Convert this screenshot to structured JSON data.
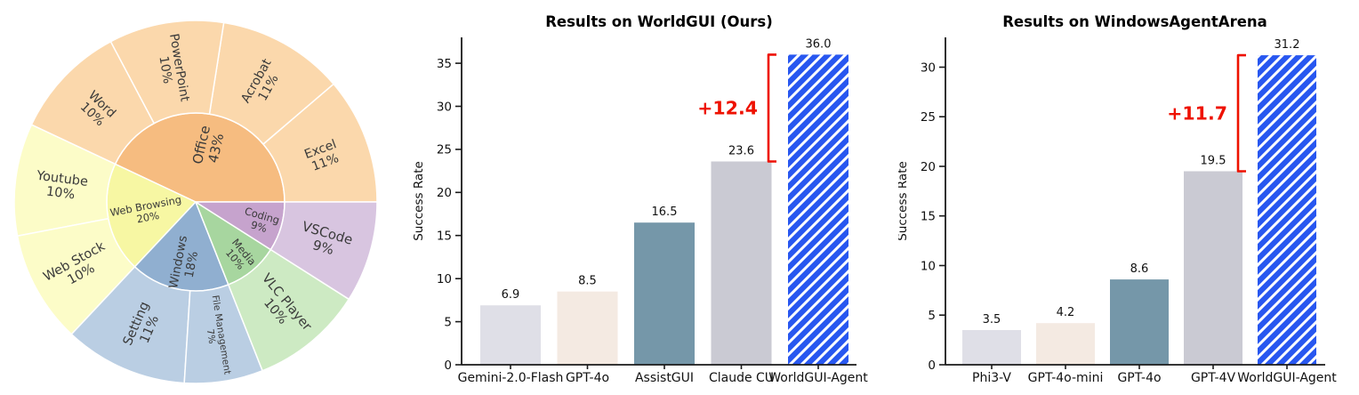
{
  "figure_title": "",
  "chart_data": [
    {
      "type": "sunburst",
      "description": "Task distribution donut: inner ring = categories, outer ring = applications",
      "start_angle_deg": 0,
      "direction": "ccw",
      "inner_radius": 100,
      "outer_radius": 204,
      "label_radius_outer": 152,
      "text_color": "#3a3a3a",
      "segments": [
        {
          "label": "Office",
          "pct": 43,
          "color": "#f6bc80",
          "label_size": 15,
          "label_r": 64,
          "children": [
            {
              "label": "Excel",
              "pct": 11,
              "color": "#fbd8ac",
              "label_size": 14
            },
            {
              "label": "Acrobat",
              "pct": 11,
              "color": "#fbd8ac",
              "label_size": 14
            },
            {
              "label": "PowerPoint",
              "pct": 10,
              "color": "#fbd8ac",
              "label_size": 14
            },
            {
              "label": "Word",
              "pct": 10,
              "color": "#fbd8ac",
              "label_size": 14
            }
          ]
        },
        {
          "label": "Web Browsing",
          "pct": 20,
          "color": "#f7f7a3",
          "label_size": 11.5,
          "label_r": 56,
          "children": [
            {
              "label": "Youtube",
              "pct": 10,
              "color": "#fcfcc8",
              "label_size": 14.5
            },
            {
              "label": "Web Stock",
              "pct": 10,
              "color": "#fcfcc8",
              "label_size": 14.5
            }
          ]
        },
        {
          "label": "Windows",
          "pct": 18,
          "color": "#90afd0",
          "label_size": 13.5,
          "label_r": 70,
          "children": [
            {
              "label": "Setting",
              "pct": 11,
              "color": "#bacee3",
              "label_size": 14.5
            },
            {
              "label": "File Management",
              "pct": 7,
              "color": "#bacee3",
              "label_size": 10.5
            }
          ]
        },
        {
          "label": "Media",
          "pct": 10,
          "color": "#a7d69f",
          "label_size": 11.5,
          "label_r": 78,
          "children": [
            {
              "label": "VLC Player",
              "pct": 10,
              "color": "#cdeac3",
              "label_size": 14.5
            }
          ]
        },
        {
          "label": "Coding",
          "pct": 9,
          "color": "#c6a3cd",
          "label_size": 11.5,
          "label_r": 76,
          "children": [
            {
              "label": "VSCode",
              "pct": 9,
              "color": "#d8c5e0",
              "label_size": 15
            }
          ]
        }
      ]
    },
    {
      "type": "bar",
      "title": "Results on WorldGUI (Ours)",
      "ylabel": "Success Rate",
      "categories": [
        "Gemini-2.0-Flash",
        "GPT-4o",
        "AssistGUI",
        "Claude CU",
        "WorldGUI-Agent"
      ],
      "values": [
        6.9,
        8.5,
        16.5,
        23.6,
        36.0
      ],
      "value_labels": [
        "6.9",
        "8.5",
        "16.5",
        "23.6",
        "36.0"
      ],
      "bar_colors": [
        "#dfdfe7",
        "#f4eae2",
        "#7597a9",
        "#cacad3",
        "#2857f0"
      ],
      "hatch": {
        "index": 4,
        "color": "#ffffff",
        "style": "/"
      },
      "yticks": [
        0,
        5,
        10,
        15,
        20,
        25,
        30,
        35
      ],
      "ylim": [
        0,
        38
      ],
      "grid": false,
      "annotation": {
        "text": "+12.4",
        "color": "#ee1100",
        "from_index": 3,
        "to_index": 4
      }
    },
    {
      "type": "bar",
      "title": "Results on WindowsAgentArena",
      "ylabel": "Success Rate",
      "categories": [
        "Phi3-V",
        "GPT-4o-mini",
        "GPT-4o",
        "GPT-4V",
        "WorldGUI-Agent"
      ],
      "values": [
        3.5,
        4.2,
        8.6,
        19.5,
        31.2
      ],
      "value_labels": [
        "3.5",
        "4.2",
        "8.6",
        "19.5",
        "31.2"
      ],
      "bar_colors": [
        "#dfdfe7",
        "#f4eae2",
        "#7597a9",
        "#cacad3",
        "#2857f0"
      ],
      "hatch": {
        "index": 4,
        "color": "#ffffff",
        "style": "/"
      },
      "yticks": [
        0,
        5,
        10,
        15,
        20,
        25,
        30
      ],
      "ylim": [
        0,
        33
      ],
      "grid": false,
      "annotation": {
        "text": "+11.7",
        "color": "#ee1100",
        "from_index": 3,
        "to_index": 4
      }
    }
  ]
}
